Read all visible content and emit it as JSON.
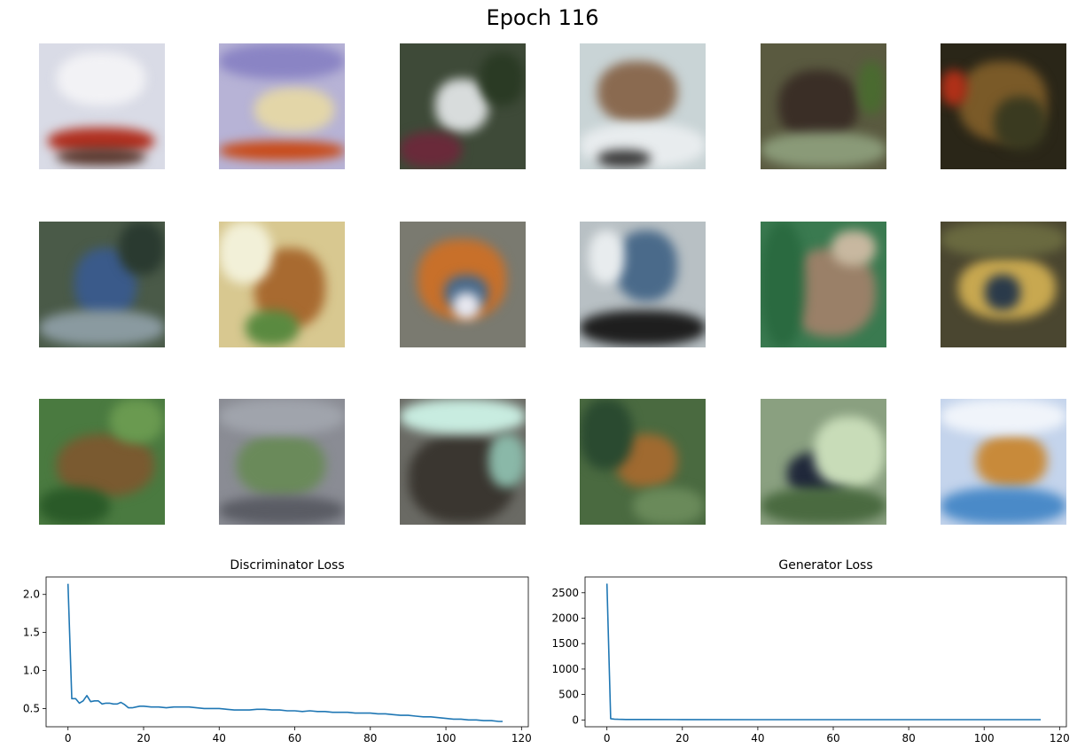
{
  "figure": {
    "title": "Epoch 116"
  },
  "samples": [
    {
      "base": "#d9dbe6",
      "blobs": [
        [
          "#b03020",
          10,
          95,
          120,
          30
        ],
        [
          "#f2f2f5",
          20,
          10,
          100,
          60
        ],
        [
          "#5a3a30",
          20,
          118,
          100,
          20
        ]
      ]
    },
    {
      "base": "#b7b3d6",
      "blobs": [
        [
          "#c84a18",
          0,
          110,
          142,
          22
        ],
        [
          "#e3d6a8",
          40,
          50,
          90,
          50
        ],
        [
          "#8a84c4",
          0,
          0,
          142,
          40
        ]
      ]
    },
    {
      "base": "#3e4a38",
      "blobs": [
        [
          "#d8dcdc",
          40,
          40,
          60,
          60
        ],
        [
          "#6a2a3a",
          0,
          100,
          70,
          40
        ],
        [
          "#2a3a24",
          90,
          10,
          50,
          60
        ]
      ]
    },
    {
      "base": "#c9d4d6",
      "blobs": [
        [
          "#8a6a50",
          20,
          20,
          90,
          70
        ],
        [
          "#e8ecee",
          0,
          90,
          142,
          50
        ],
        [
          "#3a3a3a",
          20,
          120,
          60,
          20
        ]
      ]
    },
    {
      "base": "#5a5a40",
      "blobs": [
        [
          "#3a2e26",
          20,
          30,
          90,
          80
        ],
        [
          "#8a9a78",
          0,
          100,
          142,
          40
        ],
        [
          "#4a6a30",
          110,
          20,
          30,
          60
        ]
      ]
    },
    {
      "base": "#2a2618",
      "blobs": [
        [
          "#7a5a28",
          20,
          20,
          100,
          90
        ],
        [
          "#b03018",
          0,
          30,
          30,
          40
        ],
        [
          "#3a3a20",
          60,
          60,
          60,
          60
        ]
      ]
    },
    {
      "base": "#4a5a48",
      "blobs": [
        [
          "#3a5a8a",
          40,
          30,
          70,
          80
        ],
        [
          "#8a9aa0",
          0,
          100,
          142,
          40
        ],
        [
          "#2a3a30",
          90,
          0,
          52,
          60
        ]
      ]
    },
    {
      "base": "#d8c890",
      "blobs": [
        [
          "#a86a30",
          40,
          30,
          80,
          90
        ],
        [
          "#f2f0d8",
          0,
          0,
          60,
          70
        ],
        [
          "#5a8a40",
          30,
          100,
          60,
          40
        ]
      ]
    },
    {
      "base": "#7a7a70",
      "blobs": [
        [
          "#c8702a",
          20,
          20,
          100,
          90
        ],
        [
          "#4a6a8a",
          50,
          60,
          50,
          40
        ],
        [
          "#e8e8f0",
          60,
          80,
          30,
          30
        ]
      ]
    },
    {
      "base": "#b8c0c4",
      "blobs": [
        [
          "#4a6a8a",
          40,
          10,
          70,
          80
        ],
        [
          "#1e1e1e",
          0,
          100,
          142,
          40
        ],
        [
          "#e8ecee",
          10,
          10,
          40,
          60
        ]
      ]
    },
    {
      "base": "#3a7a50",
      "blobs": [
        [
          "#9a8068",
          30,
          30,
          100,
          100
        ],
        [
          "#2a6a40",
          0,
          0,
          50,
          142
        ],
        [
          "#c8b8a0",
          80,
          10,
          50,
          40
        ]
      ]
    },
    {
      "base": "#4a4630",
      "blobs": [
        [
          "#c8a850",
          20,
          40,
          110,
          70
        ],
        [
          "#2a3a4a",
          50,
          60,
          40,
          40
        ],
        [
          "#6a6a40",
          0,
          0,
          142,
          40
        ]
      ]
    },
    {
      "base": "#4a7a40",
      "blobs": [
        [
          "#7a5a30",
          20,
          40,
          110,
          70
        ],
        [
          "#2a5a28",
          0,
          100,
          80,
          42
        ],
        [
          "#6a9a50",
          80,
          0,
          60,
          50
        ]
      ]
    },
    {
      "base": "#8a8c94",
      "blobs": [
        [
          "#6a8a5a",
          20,
          40,
          100,
          70
        ],
        [
          "#a0a4ac",
          0,
          0,
          142,
          40
        ],
        [
          "#5a5c64",
          0,
          110,
          142,
          32
        ]
      ]
    },
    {
      "base": "#6a6a64",
      "blobs": [
        [
          "#3a3630",
          10,
          40,
          120,
          100
        ],
        [
          "#c8ece0",
          0,
          0,
          142,
          40
        ],
        [
          "#8ab8a8",
          100,
          40,
          42,
          60
        ]
      ]
    },
    {
      "base": "#4a6a40",
      "blobs": [
        [
          "#a06a30",
          40,
          40,
          70,
          60
        ],
        [
          "#2a4a30",
          0,
          0,
          60,
          80
        ],
        [
          "#6a8a5a",
          60,
          100,
          80,
          42
        ]
      ]
    },
    {
      "base": "#8aa080",
      "blobs": [
        [
          "#20283a",
          30,
          60,
          70,
          50
        ],
        [
          "#c8dcb8",
          60,
          20,
          80,
          80
        ],
        [
          "#4a6a40",
          0,
          100,
          142,
          42
        ]
      ]
    },
    {
      "base": "#c4d4ec",
      "blobs": [
        [
          "#c88a3a",
          40,
          40,
          80,
          60
        ],
        [
          "#4a8ac8",
          0,
          100,
          142,
          42
        ],
        [
          "#f0f4fa",
          0,
          0,
          142,
          40
        ]
      ]
    }
  ],
  "chart_data": [
    {
      "type": "line",
      "title": "Discriminator Loss",
      "xlabel": "",
      "ylabel": "",
      "xlim": [
        -5.8,
        121.8
      ],
      "ylim": [
        0.26,
        2.23
      ],
      "xticks": [
        0,
        20,
        40,
        60,
        80,
        100,
        120
      ],
      "yticks": [
        0.5,
        1.0,
        1.5,
        2.0
      ],
      "ytick_labels": [
        "0.5",
        "1.0",
        "1.5",
        "2.0"
      ],
      "grid": false,
      "color": "#1f77b4",
      "x": [
        0,
        1,
        2,
        3,
        4,
        5,
        6,
        7,
        8,
        9,
        10,
        11,
        12,
        13,
        14,
        15,
        16,
        17,
        18,
        19,
        20,
        22,
        24,
        26,
        28,
        30,
        32,
        34,
        36,
        38,
        40,
        42,
        44,
        46,
        48,
        50,
        52,
        54,
        56,
        58,
        60,
        62,
        64,
        66,
        68,
        70,
        72,
        74,
        76,
        78,
        80,
        82,
        84,
        86,
        88,
        90,
        92,
        94,
        96,
        98,
        100,
        102,
        104,
        106,
        108,
        110,
        112,
        114,
        115
      ],
      "y": [
        2.14,
        0.63,
        0.63,
        0.57,
        0.6,
        0.67,
        0.59,
        0.6,
        0.6,
        0.56,
        0.57,
        0.57,
        0.56,
        0.56,
        0.58,
        0.55,
        0.51,
        0.51,
        0.52,
        0.53,
        0.53,
        0.52,
        0.52,
        0.51,
        0.52,
        0.52,
        0.52,
        0.51,
        0.5,
        0.5,
        0.5,
        0.49,
        0.48,
        0.48,
        0.48,
        0.49,
        0.49,
        0.48,
        0.48,
        0.47,
        0.47,
        0.46,
        0.47,
        0.46,
        0.46,
        0.45,
        0.45,
        0.45,
        0.44,
        0.44,
        0.44,
        0.43,
        0.43,
        0.42,
        0.41,
        0.41,
        0.4,
        0.39,
        0.39,
        0.38,
        0.37,
        0.36,
        0.36,
        0.35,
        0.35,
        0.34,
        0.34,
        0.33,
        0.33
      ]
    },
    {
      "type": "line",
      "title": "Generator Loss",
      "xlabel": "",
      "ylabel": "",
      "xlim": [
        -5.8,
        121.8
      ],
      "ylim": [
        -134,
        2810
      ],
      "xticks": [
        0,
        20,
        40,
        60,
        80,
        100,
        120
      ],
      "yticks": [
        0,
        500,
        1000,
        1500,
        2000,
        2500
      ],
      "ytick_labels": [
        "0",
        "500",
        "1000",
        "1500",
        "2000",
        "2500"
      ],
      "grid": false,
      "color": "#1f77b4",
      "x": [
        0,
        1,
        2,
        3,
        4,
        5,
        10,
        20,
        40,
        60,
        80,
        100,
        115
      ],
      "y": [
        2680,
        25,
        15,
        12,
        10,
        9,
        8,
        7,
        6,
        6,
        5,
        5,
        5
      ]
    }
  ]
}
